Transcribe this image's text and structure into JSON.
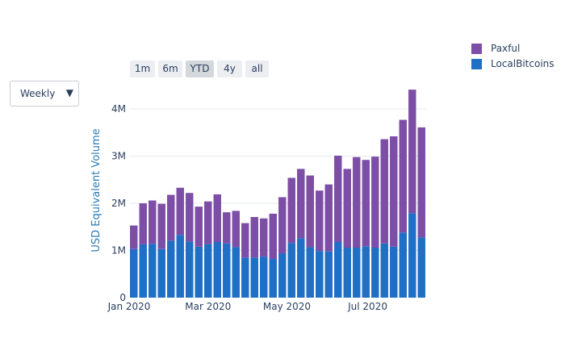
{
  "controls": {
    "frequency_select": {
      "selected": "Weekly",
      "arrow": "▼"
    },
    "range_buttons": [
      {
        "label": "1m",
        "active": false
      },
      {
        "label": "6m",
        "active": false
      },
      {
        "label": "YTD",
        "active": true
      },
      {
        "label": "4y",
        "active": false
      },
      {
        "label": "all",
        "active": false
      }
    ]
  },
  "legend": [
    {
      "name": "Paxful",
      "color": "#7d4ea6"
    },
    {
      "name": "LocalBitcoins",
      "color": "#1f6fc4"
    }
  ],
  "chart_data": {
    "type": "bar",
    "stacked": true,
    "ylabel": "USD Equivalent Volume",
    "ylim": [
      0,
      4.6
    ],
    "y_unit": "M",
    "yticks": [
      {
        "value": 0,
        "label": "0"
      },
      {
        "value": 1,
        "label": "1M"
      },
      {
        "value": 2,
        "label": "2M"
      },
      {
        "value": 3,
        "label": "3M"
      },
      {
        "value": 4,
        "label": "4M"
      }
    ],
    "xticks": [
      {
        "index": 0,
        "label": "Jan 2020"
      },
      {
        "index": 8.5,
        "label": "Mar 2020"
      },
      {
        "index": 17,
        "label": "May 2020"
      },
      {
        "index": 25.7,
        "label": "Jul 2020"
      }
    ],
    "grid": true,
    "legend_position": "top-right",
    "x_start_date": "2020-01-05",
    "x_interval": "weekly",
    "series": [
      {
        "name": "LocalBitcoins",
        "color": "#1f6fc4",
        "values": [
          1.03,
          1.13,
          1.14,
          1.03,
          1.21,
          1.33,
          1.19,
          1.08,
          1.13,
          1.18,
          1.15,
          1.07,
          0.85,
          0.85,
          0.87,
          0.82,
          0.94,
          1.16,
          1.26,
          1.07,
          0.99,
          0.98,
          1.18,
          1.06,
          1.06,
          1.09,
          1.06,
          1.15,
          1.08,
          1.38,
          1.79,
          1.28
        ]
      },
      {
        "name": "Paxful",
        "color": "#7d4ea6",
        "values": [
          0.5,
          0.87,
          0.92,
          0.96,
          0.97,
          1.0,
          1.03,
          0.85,
          0.91,
          1.01,
          0.66,
          0.77,
          0.73,
          0.86,
          0.81,
          0.96,
          1.19,
          1.38,
          1.47,
          1.52,
          1.28,
          1.42,
          1.83,
          1.67,
          1.92,
          1.83,
          1.93,
          2.21,
          2.34,
          2.39,
          2.62,
          2.33
        ]
      }
    ]
  }
}
